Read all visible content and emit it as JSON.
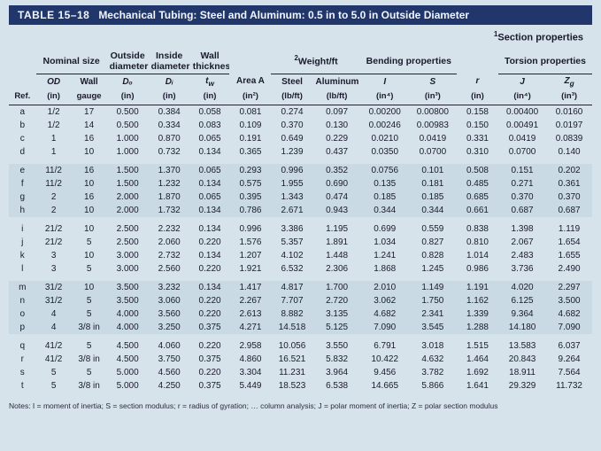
{
  "title_num": "TABLE 15–18",
  "title_text": "Mechanical Tubing: Steel and Aluminum: 0.5 in to 5.0 in Outside Diameter",
  "superheader": "Section properties",
  "superheader_sup": "1",
  "head_groups": {
    "nominal": "Nominal size",
    "do_lbl": "Outside diameter",
    "di_lbl": "Inside diameter",
    "tw_lbl": "Wall thickness",
    "weight": "Weight/ft",
    "weight_sup": "2",
    "bending": "Bending properties",
    "torsion": "Torsion properties"
  },
  "head_sub": {
    "ref": "Ref.",
    "od": "OD",
    "od_unit": "(in)",
    "wall": "Wall",
    "wall_unit": "gauge",
    "do": "Dₒ",
    "do_unit": "(in)",
    "di": "Dᵢ",
    "di_unit": "(in)",
    "tw": "t_w",
    "tw_unit": "(in)",
    "area": "Area A",
    "area_unit": "(in²)",
    "wst": "Steel",
    "wst_unit": "(lb/ft)",
    "wal": "Aluminum",
    "wal_unit": "(lb/ft)",
    "I": "I",
    "I_unit": "(in⁴)",
    "S": "S",
    "S_unit": "(in³)",
    "r": "r",
    "r_unit": "(in)",
    "J": "J",
    "J_unit": "(in⁴)",
    "Zg": "Z_g",
    "Zg_unit": "(in³)"
  },
  "groups": [
    [
      [
        "a",
        "1/2",
        "17",
        "0.500",
        "0.384",
        "0.058",
        "0.081",
        "0.274",
        "0.097",
        "0.00200",
        "0.00800",
        "0.158",
        "0.00400",
        "0.0160"
      ],
      [
        "b",
        "1/2",
        "14",
        "0.500",
        "0.334",
        "0.083",
        "0.109",
        "0.370",
        "0.130",
        "0.00246",
        "0.00983",
        "0.150",
        "0.00491",
        "0.0197"
      ],
      [
        "c",
        "1",
        "16",
        "1.000",
        "0.870",
        "0.065",
        "0.191",
        "0.649",
        "0.229",
        "0.0210",
        "0.0419",
        "0.331",
        "0.0419",
        "0.0839"
      ],
      [
        "d",
        "1",
        "10",
        "1.000",
        "0.732",
        "0.134",
        "0.365",
        "1.239",
        "0.437",
        "0.0350",
        "0.0700",
        "0.310",
        "0.0700",
        "0.140"
      ]
    ],
    [
      [
        "e",
        "11/2",
        "16",
        "1.500",
        "1.370",
        "0.065",
        "0.293",
        "0.996",
        "0.352",
        "0.0756",
        "0.101",
        "0.508",
        "0.151",
        "0.202"
      ],
      [
        "f",
        "11/2",
        "10",
        "1.500",
        "1.232",
        "0.134",
        "0.575",
        "1.955",
        "0.690",
        "0.135",
        "0.181",
        "0.485",
        "0.271",
        "0.361"
      ],
      [
        "g",
        "2",
        "16",
        "2.000",
        "1.870",
        "0.065",
        "0.395",
        "1.343",
        "0.474",
        "0.185",
        "0.185",
        "0.685",
        "0.370",
        "0.370"
      ],
      [
        "h",
        "2",
        "10",
        "2.000",
        "1.732",
        "0.134",
        "0.786",
        "2.671",
        "0.943",
        "0.344",
        "0.344",
        "0.661",
        "0.687",
        "0.687"
      ]
    ],
    [
      [
        "i",
        "21/2",
        "10",
        "2.500",
        "2.232",
        "0.134",
        "0.996",
        "3.386",
        "1.195",
        "0.699",
        "0.559",
        "0.838",
        "1.398",
        "1.119"
      ],
      [
        "j",
        "21/2",
        "5",
        "2.500",
        "2.060",
        "0.220",
        "1.576",
        "5.357",
        "1.891",
        "1.034",
        "0.827",
        "0.810",
        "2.067",
        "1.654"
      ],
      [
        "k",
        "3",
        "10",
        "3.000",
        "2.732",
        "0.134",
        "1.207",
        "4.102",
        "1.448",
        "1.241",
        "0.828",
        "1.014",
        "2.483",
        "1.655"
      ],
      [
        "l",
        "3",
        "5",
        "3.000",
        "2.560",
        "0.220",
        "1.921",
        "6.532",
        "2.306",
        "1.868",
        "1.245",
        "0.986",
        "3.736",
        "2.490"
      ]
    ],
    [
      [
        "m",
        "31/2",
        "10",
        "3.500",
        "3.232",
        "0.134",
        "1.417",
        "4.817",
        "1.700",
        "2.010",
        "1.149",
        "1.191",
        "4.020",
        "2.297"
      ],
      [
        "n",
        "31/2",
        "5",
        "3.500",
        "3.060",
        "0.220",
        "2.267",
        "7.707",
        "2.720",
        "3.062",
        "1.750",
        "1.162",
        "6.125",
        "3.500"
      ],
      [
        "o",
        "4",
        "5",
        "4.000",
        "3.560",
        "0.220",
        "2.613",
        "8.882",
        "3.135",
        "4.682",
        "2.341",
        "1.339",
        "9.364",
        "4.682"
      ],
      [
        "p",
        "4",
        "3/8 in",
        "4.000",
        "3.250",
        "0.375",
        "4.271",
        "14.518",
        "5.125",
        "7.090",
        "3.545",
        "1.288",
        "14.180",
        "7.090"
      ]
    ],
    [
      [
        "q",
        "41/2",
        "5",
        "4.500",
        "4.060",
        "0.220",
        "2.958",
        "10.056",
        "3.550",
        "6.791",
        "3.018",
        "1.515",
        "13.583",
        "6.037"
      ],
      [
        "r",
        "41/2",
        "3/8 in",
        "4.500",
        "3.750",
        "0.375",
        "4.860",
        "16.521",
        "5.832",
        "10.422",
        "4.632",
        "1.464",
        "20.843",
        "9.264"
      ],
      [
        "s",
        "5",
        "5",
        "5.000",
        "4.560",
        "0.220",
        "3.304",
        "11.231",
        "3.964",
        "9.456",
        "3.782",
        "1.692",
        "18.911",
        "7.564"
      ],
      [
        "t",
        "5",
        "3/8 in",
        "5.000",
        "4.250",
        "0.375",
        "5.449",
        "18.523",
        "6.538",
        "14.665",
        "5.866",
        "1.641",
        "29.329",
        "11.732"
      ]
    ]
  ],
  "footnote": "Notes:  I = moment of inertia;  S = section modulus;  r = radius of gyration;  … column analysis;  J = polar moment of inertia;  Z = polar section modulus"
}
